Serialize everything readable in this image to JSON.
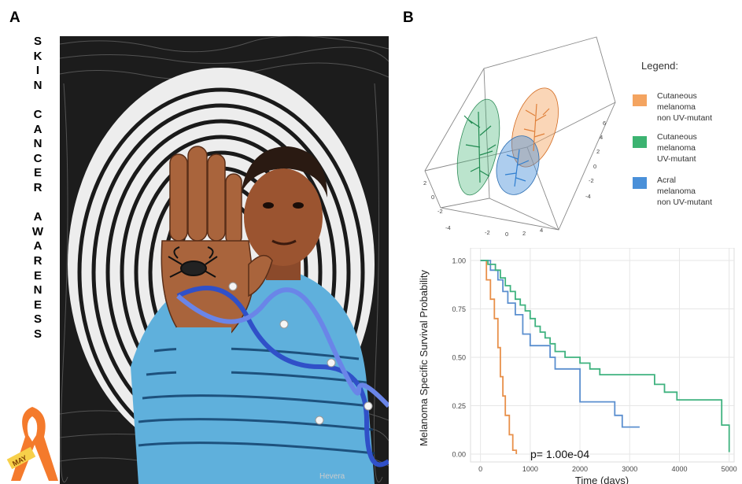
{
  "panels": {
    "a_label": "A",
    "b_label": "B"
  },
  "awareness_text": [
    "S",
    "K",
    "I",
    "N",
    "",
    "C",
    "A",
    "N",
    "C",
    "E",
    "R",
    "",
    "A",
    "W",
    "A",
    "R",
    "E",
    "N",
    "E",
    "S",
    "S"
  ],
  "ribbon_text": "MAY",
  "legend": {
    "title": "Legend:",
    "items": [
      {
        "label_lines": [
          "Cutaneous",
          "melanoma",
          "non UV-mutant"
        ],
        "color": "#f4a460"
      },
      {
        "label_lines": [
          "Cutaneous",
          "melanoma",
          "UV-mutant"
        ],
        "color": "#3cb371"
      },
      {
        "label_lines": [
          "Acral",
          "melanoma",
          "non UV-mutant"
        ],
        "color": "#4a90d9"
      }
    ]
  },
  "pca_axis_ticks": {
    "right": [
      "6",
      "4",
      "2",
      "0",
      "-2",
      "-4"
    ],
    "left": [
      "2",
      "0",
      "-2",
      "-4"
    ],
    "bottom": [
      "-2",
      "0",
      "2",
      "4"
    ]
  },
  "chart_data": {
    "type": "line",
    "title": "",
    "xlabel": "Time (days)",
    "ylabel": "Melanoma Specific Survival Probability",
    "xlim": [
      -200,
      5100
    ],
    "ylim": [
      0,
      1.0
    ],
    "x_ticks": [
      0,
      1000,
      2000,
      3000,
      4000,
      5000
    ],
    "y_ticks": [
      0.0,
      0.25,
      0.5,
      0.75,
      1.0
    ],
    "x_tick_labels": [
      "0",
      "1000",
      "2000",
      "3000",
      "4000",
      "5000"
    ],
    "y_tick_labels": [
      "0.00",
      "0.25",
      "0.50",
      "0.75",
      "1.00"
    ],
    "grid": true,
    "annotation": "p= 1.00e-04",
    "series": [
      {
        "color": "#e8904a",
        "steps": [
          [
            0,
            1.0
          ],
          [
            120,
            1.0
          ],
          [
            120,
            0.9
          ],
          [
            200,
            0.9
          ],
          [
            200,
            0.8
          ],
          [
            280,
            0.8
          ],
          [
            280,
            0.7
          ],
          [
            350,
            0.7
          ],
          [
            350,
            0.55
          ],
          [
            400,
            0.55
          ],
          [
            400,
            0.4
          ],
          [
            450,
            0.4
          ],
          [
            450,
            0.3
          ],
          [
            500,
            0.3
          ],
          [
            500,
            0.2
          ],
          [
            580,
            0.2
          ],
          [
            580,
            0.1
          ],
          [
            650,
            0.1
          ],
          [
            650,
            0.02
          ],
          [
            720,
            0.02
          ],
          [
            720,
            0.0
          ]
        ]
      },
      {
        "color": "#5b8fcf",
        "steps": [
          [
            0,
            1.0
          ],
          [
            200,
            1.0
          ],
          [
            200,
            0.95
          ],
          [
            350,
            0.95
          ],
          [
            350,
            0.9
          ],
          [
            450,
            0.9
          ],
          [
            450,
            0.84
          ],
          [
            550,
            0.84
          ],
          [
            550,
            0.78
          ],
          [
            700,
            0.78
          ],
          [
            700,
            0.72
          ],
          [
            850,
            0.72
          ],
          [
            850,
            0.62
          ],
          [
            1000,
            0.62
          ],
          [
            1000,
            0.56
          ],
          [
            1400,
            0.56
          ],
          [
            1400,
            0.5
          ],
          [
            1500,
            0.5
          ],
          [
            1500,
            0.44
          ],
          [
            2000,
            0.44
          ],
          [
            2000,
            0.27
          ],
          [
            2700,
            0.27
          ],
          [
            2700,
            0.2
          ],
          [
            2850,
            0.2
          ],
          [
            2850,
            0.14
          ],
          [
            3200,
            0.14
          ]
        ]
      },
      {
        "color": "#3fb27f",
        "steps": [
          [
            0,
            1.0
          ],
          [
            150,
            1.0
          ],
          [
            150,
            0.98
          ],
          [
            300,
            0.98
          ],
          [
            300,
            0.95
          ],
          [
            400,
            0.95
          ],
          [
            400,
            0.91
          ],
          [
            500,
            0.91
          ],
          [
            500,
            0.87
          ],
          [
            600,
            0.87
          ],
          [
            600,
            0.84
          ],
          [
            700,
            0.84
          ],
          [
            700,
            0.8
          ],
          [
            800,
            0.8
          ],
          [
            800,
            0.77
          ],
          [
            900,
            0.77
          ],
          [
            900,
            0.74
          ],
          [
            1000,
            0.74
          ],
          [
            1000,
            0.7
          ],
          [
            1100,
            0.7
          ],
          [
            1100,
            0.66
          ],
          [
            1200,
            0.66
          ],
          [
            1200,
            0.63
          ],
          [
            1300,
            0.63
          ],
          [
            1300,
            0.6
          ],
          [
            1400,
            0.6
          ],
          [
            1400,
            0.57
          ],
          [
            1500,
            0.57
          ],
          [
            1500,
            0.53
          ],
          [
            1700,
            0.53
          ],
          [
            1700,
            0.5
          ],
          [
            2000,
            0.5
          ],
          [
            2000,
            0.47
          ],
          [
            2200,
            0.47
          ],
          [
            2200,
            0.44
          ],
          [
            2400,
            0.44
          ],
          [
            2400,
            0.41
          ],
          [
            3500,
            0.41
          ],
          [
            3500,
            0.36
          ],
          [
            3700,
            0.36
          ],
          [
            3700,
            0.32
          ],
          [
            3950,
            0.32
          ],
          [
            3950,
            0.28
          ],
          [
            4850,
            0.28
          ],
          [
            4850,
            0.15
          ],
          [
            5000,
            0.15
          ],
          [
            5000,
            0.01
          ]
        ]
      }
    ]
  }
}
